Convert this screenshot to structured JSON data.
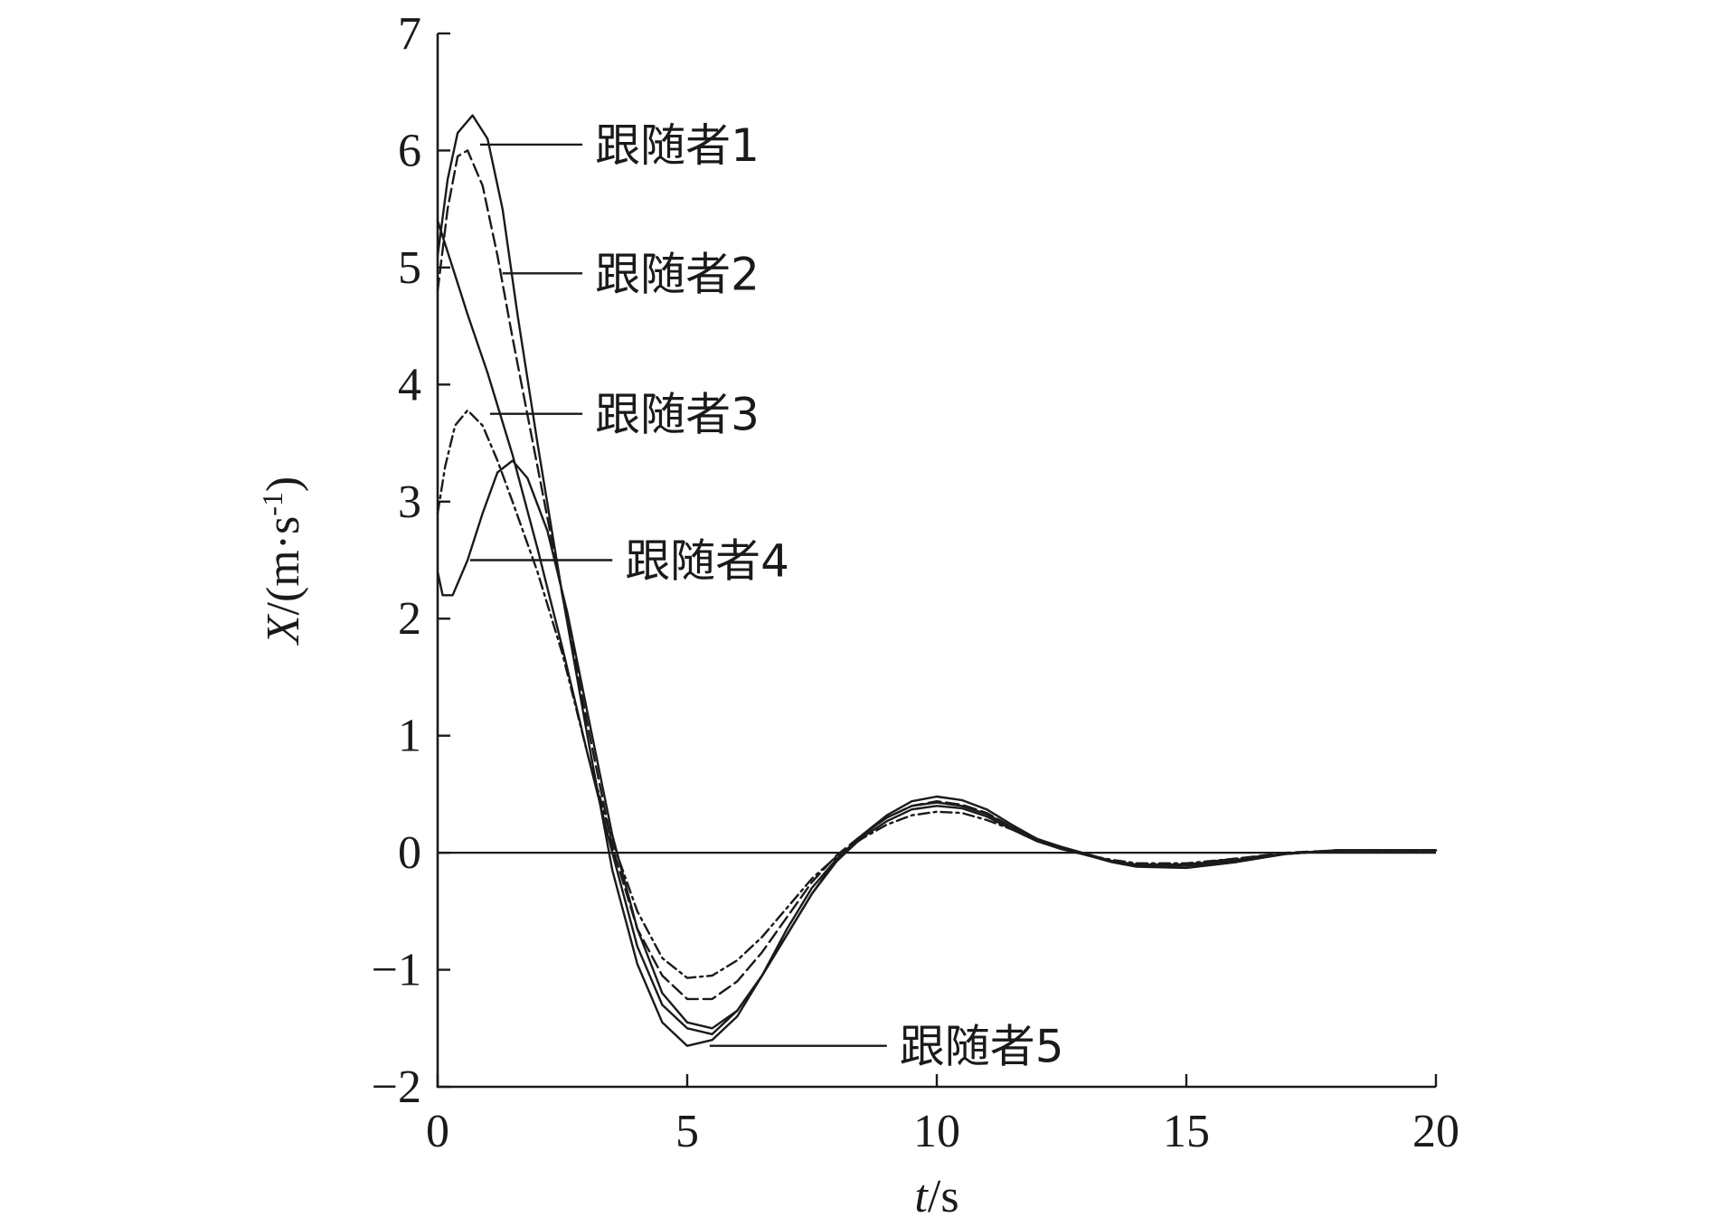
{
  "chart_data": {
    "type": "line",
    "xlabel": {
      "var": "t",
      "unit": "/s"
    },
    "ylabel": {
      "var": "X",
      "unit": "/(m·s",
      "sup": "-1",
      "close": ")"
    },
    "xlim": [
      0,
      20
    ],
    "ylim": [
      -2,
      7
    ],
    "x_ticks": [
      0,
      5,
      10,
      15,
      20
    ],
    "y_ticks": [
      -2,
      -1,
      0,
      1,
      2,
      3,
      4,
      5,
      6,
      7
    ],
    "x_tick_labels": [
      "0",
      "5",
      "10",
      "15",
      "20"
    ],
    "y_tick_labels": [
      "−2",
      "−1",
      "0",
      "1",
      "2",
      "3",
      "4",
      "5",
      "6",
      "7"
    ],
    "zero_line": true,
    "grid": false,
    "legend": "inline labels with leader lines",
    "series": [
      {
        "name": "跟随者1",
        "style": "solid",
        "label": "跟随者1",
        "leader_point": [
          0.85,
          6.05
        ],
        "label_anchor": [
          2.9,
          6.05
        ],
        "points": [
          [
            0,
            5.1
          ],
          [
            0.2,
            5.75
          ],
          [
            0.4,
            6.15
          ],
          [
            0.7,
            6.3
          ],
          [
            1.0,
            6.1
          ],
          [
            1.3,
            5.5
          ],
          [
            1.6,
            4.6
          ],
          [
            2.0,
            3.5
          ],
          [
            2.5,
            2.2
          ],
          [
            3.0,
            1.0
          ],
          [
            3.5,
            -0.15
          ],
          [
            4.0,
            -0.95
          ],
          [
            4.5,
            -1.45
          ],
          [
            5.0,
            -1.65
          ],
          [
            5.5,
            -1.6
          ],
          [
            6.0,
            -1.4
          ],
          [
            6.5,
            -1.05
          ],
          [
            7.0,
            -0.65
          ],
          [
            7.5,
            -0.3
          ],
          [
            8.0,
            -0.05
          ],
          [
            8.5,
            0.15
          ],
          [
            9.0,
            0.32
          ],
          [
            9.5,
            0.44
          ],
          [
            10.0,
            0.48
          ],
          [
            10.5,
            0.45
          ],
          [
            11.0,
            0.37
          ],
          [
            11.5,
            0.24
          ],
          [
            12.0,
            0.12
          ],
          [
            12.5,
            0.04
          ],
          [
            13.0,
            -0.02
          ],
          [
            13.5,
            -0.08
          ],
          [
            14.0,
            -0.12
          ],
          [
            15.0,
            -0.13
          ],
          [
            16.0,
            -0.08
          ],
          [
            17.0,
            -0.01
          ],
          [
            18.0,
            0.02
          ],
          [
            19.0,
            0.02
          ],
          [
            20.0,
            0.02
          ]
        ]
      },
      {
        "name": "跟随者2",
        "style": "dashed",
        "label": "跟随者2",
        "leader_point": [
          1.3,
          4.95
        ],
        "label_anchor": [
          2.9,
          4.95
        ],
        "points": [
          [
            0,
            4.8
          ],
          [
            0.2,
            5.5
          ],
          [
            0.4,
            5.95
          ],
          [
            0.6,
            6.0
          ],
          [
            0.9,
            5.7
          ],
          [
            1.2,
            5.1
          ],
          [
            1.5,
            4.4
          ],
          [
            2.0,
            3.3
          ],
          [
            2.5,
            2.2
          ],
          [
            3.0,
            1.1
          ],
          [
            3.5,
            0.05
          ],
          [
            4.0,
            -0.65
          ],
          [
            4.5,
            -1.05
          ],
          [
            5.0,
            -1.25
          ],
          [
            5.5,
            -1.25
          ],
          [
            6.0,
            -1.1
          ],
          [
            6.5,
            -0.85
          ],
          [
            7.0,
            -0.55
          ],
          [
            7.5,
            -0.25
          ],
          [
            8.0,
            -0.02
          ],
          [
            8.5,
            0.15
          ],
          [
            9.0,
            0.3
          ],
          [
            9.5,
            0.4
          ],
          [
            10.0,
            0.44
          ],
          [
            10.5,
            0.41
          ],
          [
            11.0,
            0.34
          ],
          [
            11.5,
            0.22
          ],
          [
            12.0,
            0.12
          ],
          [
            12.5,
            0.04
          ],
          [
            13.0,
            -0.02
          ],
          [
            13.5,
            -0.07
          ],
          [
            14.0,
            -0.11
          ],
          [
            15.0,
            -0.1
          ],
          [
            16.0,
            -0.05
          ],
          [
            17.0,
            0.0
          ],
          [
            18.0,
            0.02
          ],
          [
            19.0,
            0.02
          ],
          [
            20.0,
            0.02
          ]
        ]
      },
      {
        "name": "跟随者3",
        "style": "dash-dot",
        "label": "跟随者3",
        "leader_point": [
          1.05,
          3.75
        ],
        "label_anchor": [
          2.9,
          3.75
        ],
        "points": [
          [
            0,
            2.9
          ],
          [
            0.15,
            3.3
          ],
          [
            0.35,
            3.65
          ],
          [
            0.6,
            3.78
          ],
          [
            0.9,
            3.65
          ],
          [
            1.2,
            3.35
          ],
          [
            1.5,
            3.0
          ],
          [
            2.0,
            2.4
          ],
          [
            2.5,
            1.7
          ],
          [
            3.0,
            0.85
          ],
          [
            3.5,
            0.1
          ],
          [
            4.0,
            -0.5
          ],
          [
            4.5,
            -0.9
          ],
          [
            5.0,
            -1.07
          ],
          [
            5.5,
            -1.05
          ],
          [
            6.0,
            -0.92
          ],
          [
            6.5,
            -0.72
          ],
          [
            7.0,
            -0.47
          ],
          [
            7.5,
            -0.22
          ],
          [
            8.0,
            -0.03
          ],
          [
            8.5,
            0.12
          ],
          [
            9.0,
            0.24
          ],
          [
            9.5,
            0.32
          ],
          [
            10.0,
            0.35
          ],
          [
            10.5,
            0.34
          ],
          [
            11.0,
            0.28
          ],
          [
            11.5,
            0.2
          ],
          [
            12.0,
            0.11
          ],
          [
            12.5,
            0.04
          ],
          [
            13.0,
            -0.02
          ],
          [
            13.5,
            -0.06
          ],
          [
            14.0,
            -0.09
          ],
          [
            15.0,
            -0.09
          ],
          [
            16.0,
            -0.05
          ],
          [
            17.0,
            -0.01
          ],
          [
            18.0,
            0.02
          ],
          [
            19.0,
            0.02
          ],
          [
            20.0,
            0.02
          ]
        ]
      },
      {
        "name": "跟随者4",
        "style": "solid",
        "label": "跟随者4",
        "leader_point": [
          0.65,
          2.5
        ],
        "label_anchor": [
          3.5,
          2.5
        ],
        "points": [
          [
            0,
            2.4
          ],
          [
            0.1,
            2.2
          ],
          [
            0.3,
            2.2
          ],
          [
            0.6,
            2.5
          ],
          [
            0.9,
            2.9
          ],
          [
            1.2,
            3.25
          ],
          [
            1.5,
            3.35
          ],
          [
            1.8,
            3.2
          ],
          [
            2.2,
            2.75
          ],
          [
            2.6,
            2.05
          ],
          [
            3.0,
            1.2
          ],
          [
            3.5,
            0.15
          ],
          [
            4.0,
            -0.65
          ],
          [
            4.5,
            -1.2
          ],
          [
            5.0,
            -1.45
          ],
          [
            5.5,
            -1.5
          ],
          [
            6.0,
            -1.35
          ],
          [
            6.5,
            -1.05
          ],
          [
            7.0,
            -0.7
          ],
          [
            7.5,
            -0.35
          ],
          [
            8.0,
            -0.05
          ],
          [
            8.5,
            0.15
          ],
          [
            9.0,
            0.3
          ],
          [
            9.5,
            0.4
          ],
          [
            10.0,
            0.43
          ],
          [
            10.5,
            0.4
          ],
          [
            11.0,
            0.33
          ],
          [
            11.5,
            0.22
          ],
          [
            12.0,
            0.12
          ],
          [
            12.5,
            0.05
          ],
          [
            13.0,
            -0.01
          ],
          [
            13.5,
            -0.07
          ],
          [
            14.0,
            -0.11
          ],
          [
            15.0,
            -0.11
          ],
          [
            16.0,
            -0.07
          ],
          [
            17.0,
            -0.01
          ],
          [
            18.0,
            0.02
          ],
          [
            19.0,
            0.02
          ],
          [
            20.0,
            0.02
          ]
        ]
      },
      {
        "name": "跟随者5",
        "style": "solid",
        "label": "跟随者5",
        "leader_point": [
          5.45,
          -1.65
        ],
        "label_anchor": [
          9.0,
          -1.65
        ],
        "points": [
          [
            0,
            5.4
          ],
          [
            0.3,
            5.0
          ],
          [
            0.6,
            4.6
          ],
          [
            1.0,
            4.1
          ],
          [
            1.5,
            3.4
          ],
          [
            2.0,
            2.6
          ],
          [
            2.5,
            1.75
          ],
          [
            3.0,
            0.85
          ],
          [
            3.5,
            0.0
          ],
          [
            4.0,
            -0.8
          ],
          [
            4.5,
            -1.3
          ],
          [
            5.0,
            -1.5
          ],
          [
            5.5,
            -1.55
          ],
          [
            6.0,
            -1.35
          ],
          [
            6.5,
            -1.05
          ],
          [
            7.0,
            -0.7
          ],
          [
            7.5,
            -0.35
          ],
          [
            8.0,
            -0.07
          ],
          [
            8.5,
            0.13
          ],
          [
            9.0,
            0.27
          ],
          [
            9.5,
            0.37
          ],
          [
            10.0,
            0.4
          ],
          [
            10.5,
            0.38
          ],
          [
            11.0,
            0.31
          ],
          [
            11.5,
            0.2
          ],
          [
            12.0,
            0.1
          ],
          [
            12.5,
            0.03
          ],
          [
            13.0,
            -0.02
          ],
          [
            13.5,
            -0.07
          ],
          [
            14.0,
            -0.1
          ],
          [
            15.0,
            -0.1
          ],
          [
            16.0,
            -0.06
          ],
          [
            17.0,
            -0.01
          ],
          [
            18.0,
            0.02
          ],
          [
            19.0,
            0.02
          ],
          [
            20.0,
            0.02
          ]
        ]
      }
    ]
  }
}
